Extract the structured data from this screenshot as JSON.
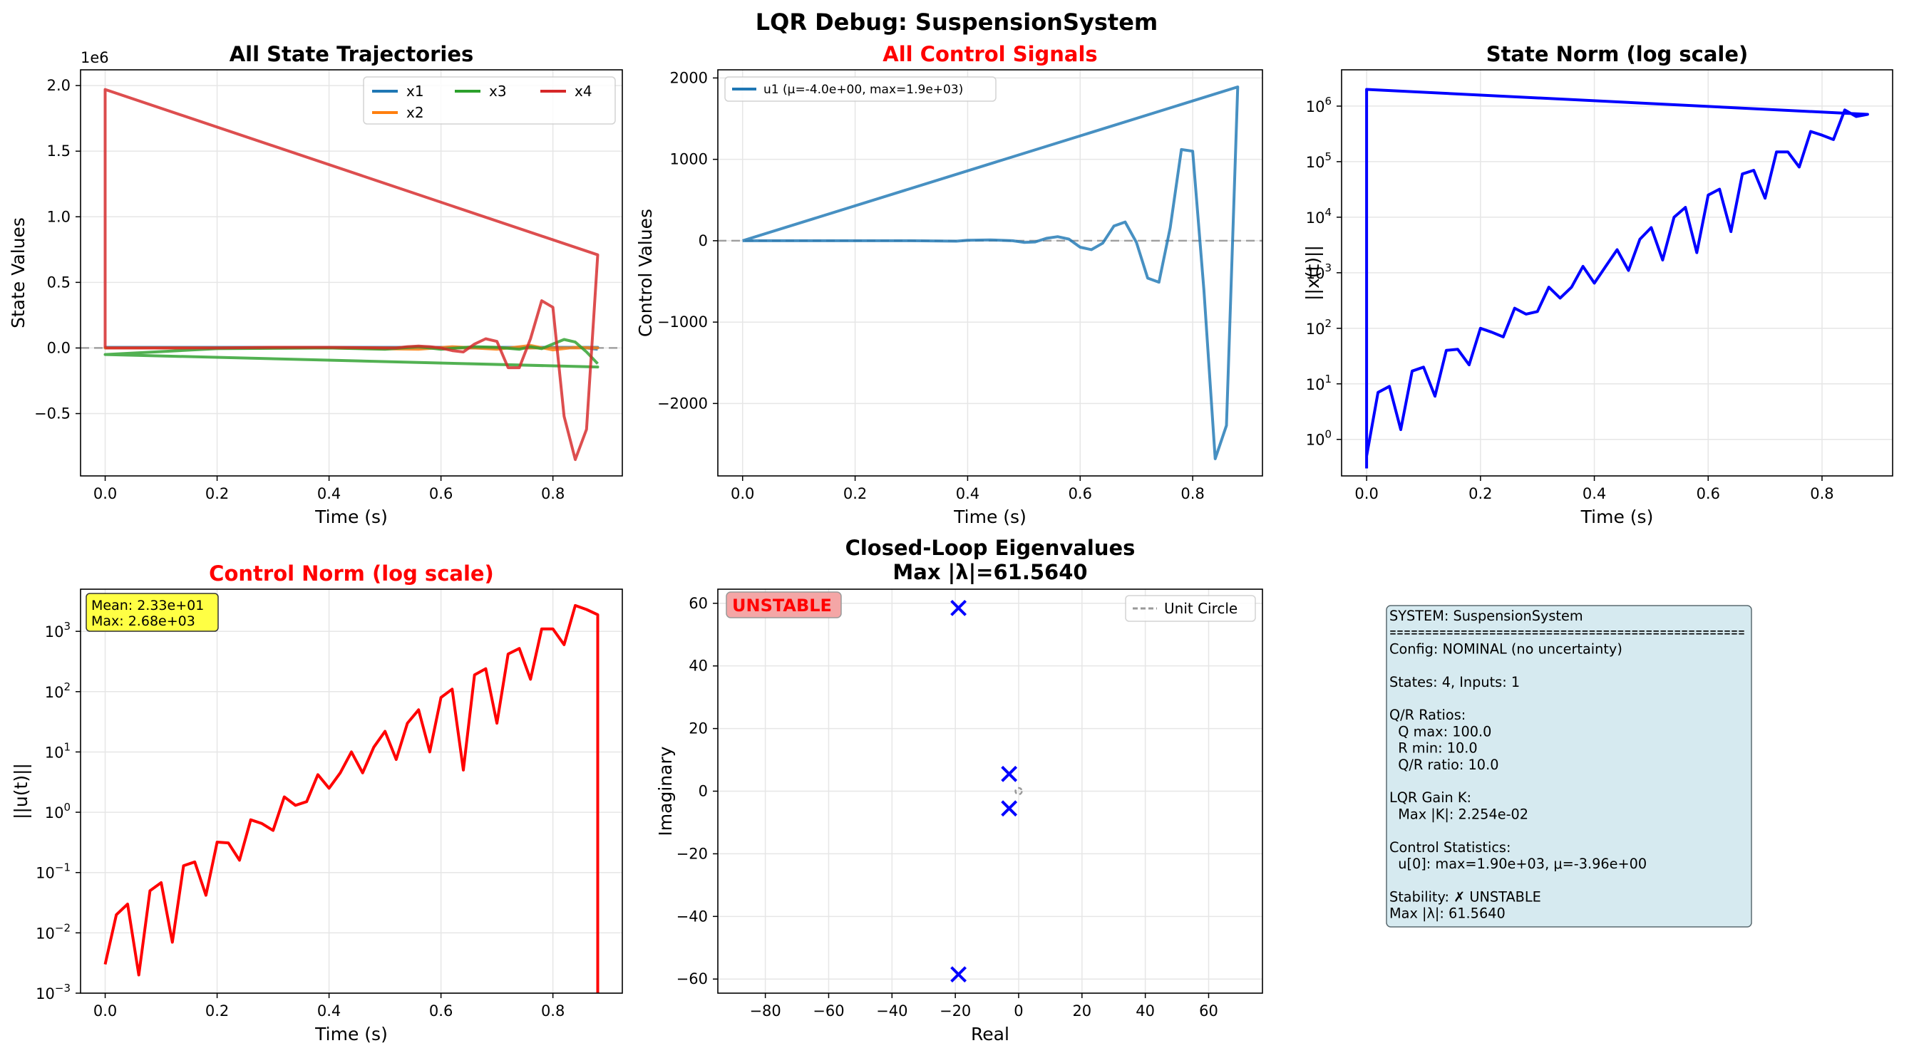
{
  "figure_title": "LQR Debug: SuspensionSystem",
  "colors": {
    "x1": "#1f77b4",
    "x2": "#ff7f0e",
    "x3": "#2ca02c",
    "x4": "#d62728",
    "u1": "#1f77b4",
    "state_norm": "#0000ff",
    "control_norm": "#ff0000",
    "red_title": "#ff0000",
    "grid": "#e6e6e6",
    "unstable_badge_bg": "#f4a6a6",
    "info_box_bg": "#d6eaf0",
    "stats_box_bg": "#ffff44"
  },
  "chart_data": [
    {
      "id": "states",
      "type": "line",
      "title": "All State Trajectories",
      "title_color": "black",
      "xlabel": "Time (s)",
      "ylabel": "State Values",
      "y_offset_label": "1e6",
      "xlim": [
        -0.044,
        0.924
      ],
      "ylim": [
        -0.975,
        2.12
      ],
      "xticks": [
        0.0,
        0.2,
        0.4,
        0.6,
        0.8
      ],
      "xtick_labels": [
        "0.0",
        "0.2",
        "0.4",
        "0.6",
        "0.8"
      ],
      "yticks": [
        -0.5,
        0.0,
        0.5,
        1.0,
        1.5,
        2.0
      ],
      "ytick_labels": [
        "−0.5",
        "0.0",
        "0.5",
        "1.0",
        "1.5",
        "2.0"
      ],
      "grid": true,
      "zero_line": true,
      "legend": "top-right",
      "legend_columns": 3,
      "series": [
        {
          "name": "x1",
          "color_key": "x1",
          "x": [
            0,
            0.88,
            0,
            0.1,
            0.2,
            0.3,
            0.4,
            0.5,
            0.6,
            0.7,
            0.76,
            0.8,
            0.84,
            0.86,
            0.88
          ],
          "y": [
            0.005,
            0.005,
            0.0,
            0.0,
            0.0,
            0.0,
            0.0,
            0.0,
            0.0,
            0.0,
            0.0,
            0.005,
            0.005,
            0.0,
            -0.01
          ]
        },
        {
          "name": "x2",
          "color_key": "x2",
          "x": [
            0,
            0.88,
            0,
            0.2,
            0.4,
            0.56,
            0.62,
            0.7,
            0.76,
            0.8,
            0.84,
            0.88
          ],
          "y": [
            0.0,
            0.0,
            0.0,
            0.0,
            0.0,
            -0.01,
            0.01,
            -0.01,
            0.02,
            -0.015,
            0.005,
            0.0
          ]
        },
        {
          "name": "x3",
          "color_key": "x3",
          "x": [
            0,
            0.88,
            0,
            0.2,
            0.4,
            0.5,
            0.56,
            0.6,
            0.66,
            0.7,
            0.74,
            0.76,
            0.78,
            0.8,
            0.82,
            0.84,
            0.86,
            0.88
          ],
          "y": [
            -0.05,
            -0.145,
            -0.05,
            -0.005,
            0.0,
            -0.01,
            0.01,
            -0.01,
            0.01,
            0.005,
            -0.01,
            0.01,
            -0.005,
            0.03,
            0.065,
            0.045,
            -0.03,
            -0.12
          ]
        },
        {
          "name": "x4",
          "color_key": "x4",
          "x": [
            0,
            0.0,
            0.88,
            0.88,
            0.86,
            0.84,
            0.82,
            0.8,
            0.78,
            0.76,
            0.74,
            0.72,
            0.7,
            0.68,
            0.66,
            0.64,
            0.62,
            0.6,
            0.58,
            0.56,
            0.54,
            0.52,
            0.5,
            0.4,
            0.3,
            0.2,
            0.1,
            0.0
          ],
          "y": [
            0.0,
            1.97,
            0.71,
            0.71,
            -0.62,
            -0.85,
            -0.52,
            0.31,
            0.36,
            0.07,
            -0.15,
            -0.15,
            0.05,
            0.07,
            0.03,
            -0.03,
            -0.02,
            0.0,
            0.01,
            0.015,
            0.01,
            0.0,
            0.0,
            0.005,
            0.005,
            0.0,
            0.0,
            0.0
          ]
        }
      ]
    },
    {
      "id": "controls",
      "type": "line",
      "title": "All Control Signals",
      "title_color": "red",
      "xlabel": "Time (s)",
      "ylabel": "Control Values",
      "xlim": [
        -0.044,
        0.924
      ],
      "ylim": [
        -2890,
        2100
      ],
      "xticks": [
        0.0,
        0.2,
        0.4,
        0.6,
        0.8
      ],
      "xtick_labels": [
        "0.0",
        "0.2",
        "0.4",
        "0.6",
        "0.8"
      ],
      "yticks": [
        -2000,
        -1000,
        0,
        1000,
        2000
      ],
      "ytick_labels": [
        "−2000",
        "−1000",
        "0",
        "1000",
        "2000"
      ],
      "grid": true,
      "zero_line": true,
      "legend": "top-left",
      "series": [
        {
          "name": "u1 (μ=-4.0e+00, max=1.9e+03)",
          "color_key": "u1",
          "x": [
            0.0,
            0.88,
            0.86,
            0.84,
            0.82,
            0.8,
            0.78,
            0.76,
            0.74,
            0.72,
            0.7,
            0.68,
            0.66,
            0.64,
            0.62,
            0.6,
            0.58,
            0.56,
            0.54,
            0.52,
            0.5,
            0.48,
            0.44,
            0.4,
            0.38,
            0.3,
            0.2,
            0.1,
            0.0
          ],
          "y": [
            0,
            1890,
            -2270,
            -2680,
            -610,
            1100,
            1120,
            160,
            -510,
            -460,
            -20,
            230,
            180,
            -30,
            -110,
            -80,
            20,
            50,
            30,
            -15,
            -20,
            0,
            10,
            5,
            -5,
            0,
            0,
            0,
            0
          ]
        }
      ]
    },
    {
      "id": "state_norm",
      "type": "line",
      "title": "State Norm (log scale)",
      "title_color": "black",
      "xlabel": "Time (s)",
      "ylabel": "||x(t)||",
      "y_scale": "log",
      "xlim": [
        -0.044,
        0.924
      ],
      "ylim": [
        0.22,
        4500000
      ],
      "xticks": [
        0.0,
        0.2,
        0.4,
        0.6,
        0.8
      ],
      "xtick_labels": [
        "0.0",
        "0.2",
        "0.4",
        "0.6",
        "0.8"
      ],
      "yticks": [
        1,
        10,
        100,
        1000,
        10000,
        100000,
        1000000
      ],
      "ytick_base": "10",
      "ytick_exponents": [
        "0",
        "1",
        "2",
        "3",
        "4",
        "5",
        "6"
      ],
      "grid": true,
      "series": [
        {
          "name": "",
          "color_key": "state_norm",
          "x": [
            0.0,
            0.0,
            0.88,
            0.86,
            0.84,
            0.82,
            0.8,
            0.78,
            0.76,
            0.74,
            0.72,
            0.7,
            0.68,
            0.66,
            0.64,
            0.62,
            0.6,
            0.58,
            0.56,
            0.54,
            0.52,
            0.5,
            0.48,
            0.46,
            0.44,
            0.42,
            0.4,
            0.38,
            0.36,
            0.34,
            0.32,
            0.3,
            0.28,
            0.26,
            0.24,
            0.22,
            0.2,
            0.18,
            0.16,
            0.14,
            0.12,
            0.1,
            0.08,
            0.06,
            0.04,
            0.02,
            0.0
          ],
          "y": [
            0.3,
            2000000,
            710000,
            650000,
            850000,
            250000,
            300000,
            350000,
            80000,
            150000,
            150000,
            22000,
            70000,
            60000,
            5500,
            32000,
            25000,
            2300,
            15000,
            10000,
            1700,
            6500,
            4000,
            1100,
            2600,
            1300,
            650,
            1300,
            550,
            350,
            550,
            200,
            180,
            230,
            70,
            85,
            100,
            22,
            42,
            40,
            6,
            20,
            17,
            1.5,
            9,
            7,
            0.5
          ]
        }
      ]
    },
    {
      "id": "control_norm",
      "type": "line",
      "title": "Control Norm (log scale)",
      "title_color": "red",
      "xlabel": "Time (s)",
      "ylabel": "||u(t)||",
      "y_scale": "log",
      "xlim": [
        -0.044,
        0.924
      ],
      "ylim": [
        0.001,
        5000
      ],
      "xticks": [
        0.0,
        0.2,
        0.4,
        0.6,
        0.8
      ],
      "xtick_labels": [
        "0.0",
        "0.2",
        "0.4",
        "0.6",
        "0.8"
      ],
      "yticks": [
        0.001,
        0.01,
        0.1,
        1,
        10,
        100,
        1000
      ],
      "ytick_base": "10",
      "ytick_exponents": [
        "−3",
        "−2",
        "−1",
        "0",
        "1",
        "2",
        "3"
      ],
      "grid": true,
      "stats_box": [
        "Mean: 2.33e+01",
        "Max: 2.68e+03"
      ],
      "series": [
        {
          "name": "",
          "color_key": "control_norm",
          "x": [
            0.0,
            0.02,
            0.04,
            0.06,
            0.08,
            0.1,
            0.12,
            0.14,
            0.16,
            0.18,
            0.2,
            0.22,
            0.24,
            0.26,
            0.28,
            0.3,
            0.32,
            0.34,
            0.36,
            0.38,
            0.4,
            0.42,
            0.44,
            0.46,
            0.48,
            0.5,
            0.52,
            0.54,
            0.56,
            0.58,
            0.6,
            0.62,
            0.64,
            0.66,
            0.68,
            0.7,
            0.72,
            0.74,
            0.76,
            0.78,
            0.8,
            0.82,
            0.84,
            0.86,
            0.88,
            0.88
          ],
          "y": [
            0.003,
            0.02,
            0.03,
            0.002,
            0.05,
            0.068,
            0.007,
            0.13,
            0.15,
            0.042,
            0.32,
            0.31,
            0.16,
            0.75,
            0.65,
            0.5,
            1.8,
            1.3,
            1.5,
            4.2,
            2.5,
            4.5,
            10,
            4.5,
            12,
            22,
            7.5,
            30,
            50,
            10,
            80,
            110,
            5,
            190,
            240,
            30,
            420,
            520,
            160,
            1100,
            1100,
            600,
            2680,
            2300,
            1890,
            0.0008
          ]
        }
      ]
    },
    {
      "id": "eigenvalues",
      "type": "scatter",
      "title": "Closed-Loop Eigenvalues",
      "title_line2": "Max |λ|=61.5640",
      "title_color": "black",
      "xlabel": "Real",
      "ylabel": "Imaginary",
      "xlim": [
        -95,
        77
      ],
      "ylim": [
        -64.5,
        64.5
      ],
      "xticks": [
        -80,
        -60,
        -40,
        -20,
        0,
        20,
        40,
        60
      ],
      "xtick_labels": [
        "−80",
        "−60",
        "−40",
        "−20",
        "0",
        "20",
        "40",
        "60"
      ],
      "yticks": [
        -60,
        -40,
        -20,
        0,
        20,
        40,
        60
      ],
      "ytick_labels": [
        "−60",
        "−40",
        "−20",
        "0",
        "20",
        "40",
        "60"
      ],
      "grid": true,
      "legend": "top-right",
      "legend_entries": [
        "Unit Circle"
      ],
      "badge": "UNSTABLE",
      "points": [
        {
          "re": -19,
          "im": 58.5
        },
        {
          "re": -19,
          "im": -58.5
        },
        {
          "re": -3,
          "im": 5.5
        },
        {
          "re": -3,
          "im": -5.5
        }
      ],
      "unit_circle_radius": 1
    }
  ],
  "info_panel": {
    "lines": [
      "SYSTEM: SuspensionSystem",
      "==================================================",
      "Config: NOMINAL (no uncertainty)",
      "",
      "States: 4, Inputs: 1",
      "",
      "Q/R Ratios:",
      "  Q max: 100.0",
      "  R min: 10.0",
      "  Q/R ratio: 10.0",
      "",
      "LQR Gain K:",
      "  Max |K|: 2.254e-02",
      "",
      "Control Statistics:",
      "  u[0]: max=1.90e+03, μ=-3.96e+00",
      "",
      "Stability: ✗ UNSTABLE",
      "Max |λ|: 61.5640"
    ]
  }
}
